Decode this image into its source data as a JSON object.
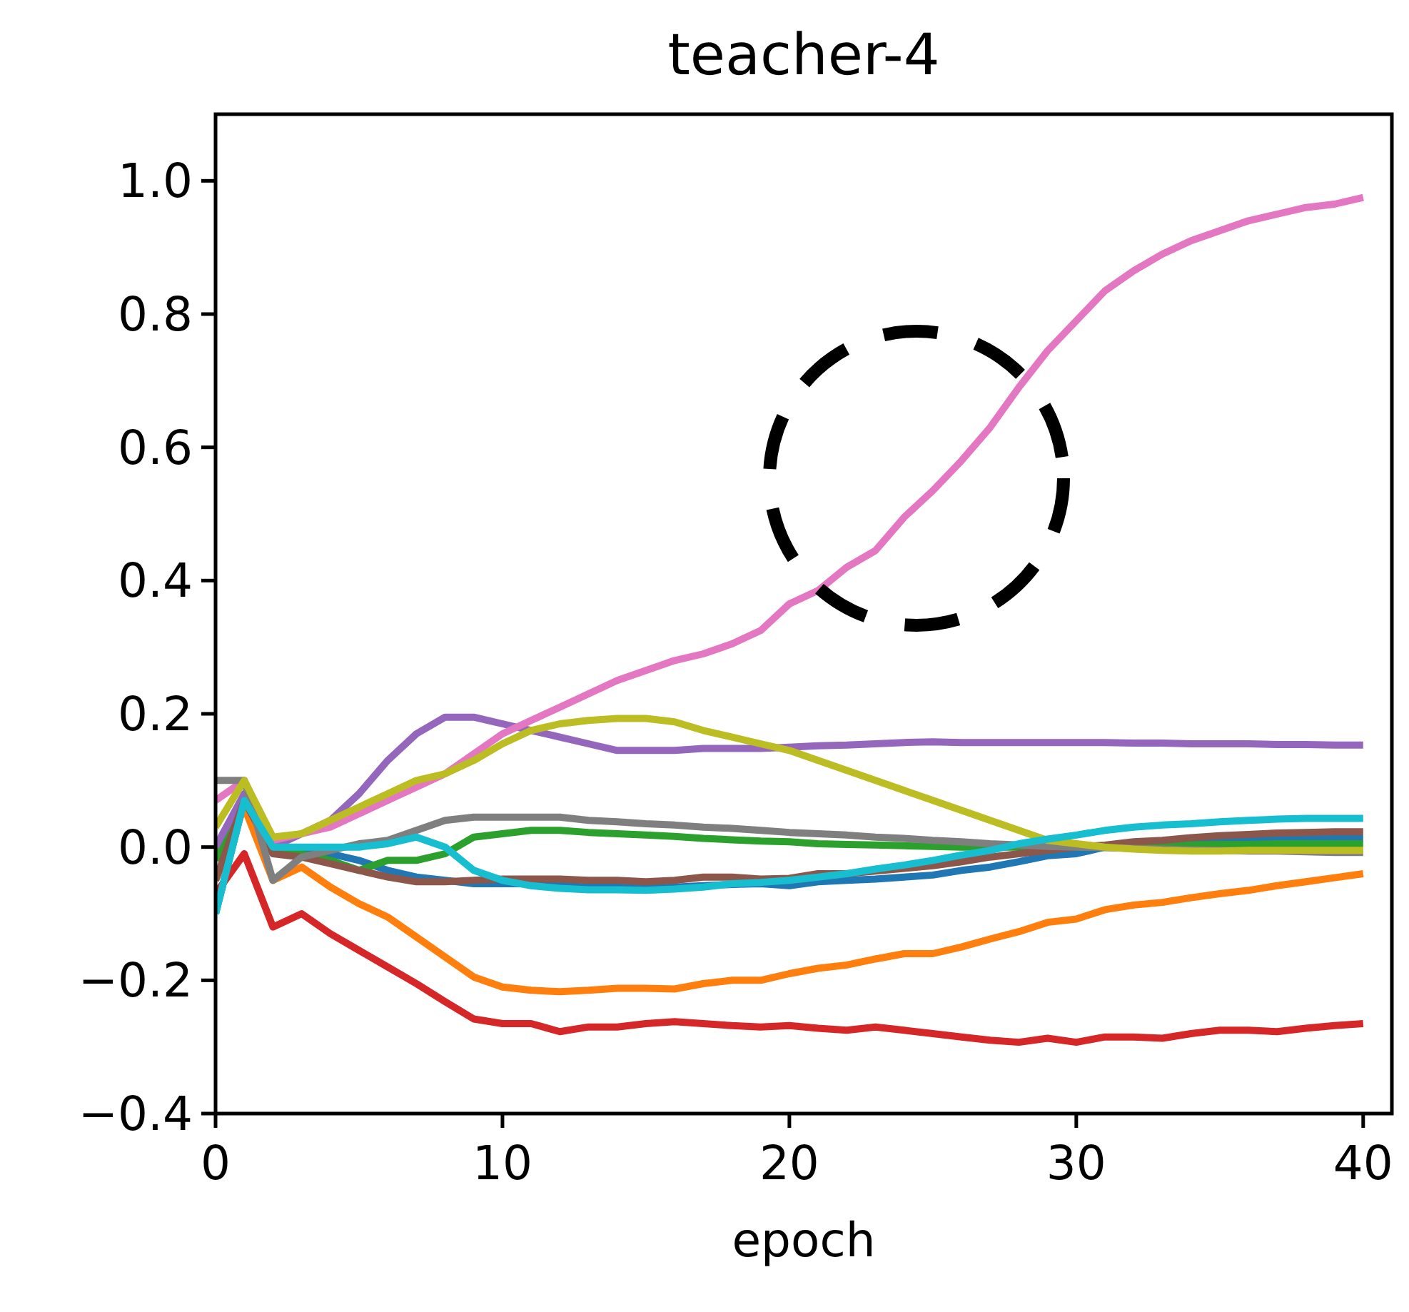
{
  "chart_data": {
    "type": "line",
    "title": "teacher-4",
    "xlabel": "epoch",
    "x": [
      0,
      1,
      2,
      3,
      4,
      5,
      6,
      7,
      8,
      9,
      10,
      11,
      12,
      13,
      14,
      15,
      16,
      17,
      18,
      19,
      20,
      21,
      22,
      23,
      24,
      25,
      26,
      27,
      28,
      29,
      30,
      31,
      32,
      33,
      34,
      35,
      36,
      37,
      38,
      39,
      40
    ],
    "xlim": [
      0,
      41
    ],
    "ylim": [
      -0.4,
      1.1
    ],
    "xticks": [
      0,
      10,
      20,
      30,
      40
    ],
    "yticks": [
      {
        "value": -0.4,
        "label": "−0.4"
      },
      {
        "value": -0.2,
        "label": "−0.2"
      },
      {
        "value": 0,
        "label": "0.0"
      },
      {
        "value": 0.2,
        "label": "0.2"
      },
      {
        "value": 0.4,
        "label": "0.4"
      },
      {
        "value": 0.6,
        "label": "0.6"
      },
      {
        "value": 0.8,
        "label": "0.8"
      },
      {
        "value": 1,
        "label": "1.0"
      }
    ],
    "grid": false,
    "line_style": "solid",
    "marker": "none",
    "series": [
      {
        "color": "#1f77b4",
        "values": [
          -0.1,
          0.07,
          -0.01,
          -0.01,
          -0.01,
          -0.02,
          -0.035,
          -0.045,
          -0.05,
          -0.055,
          -0.055,
          -0.055,
          -0.058,
          -0.06,
          -0.06,
          -0.062,
          -0.06,
          -0.058,
          -0.056,
          -0.055,
          -0.058,
          -0.052,
          -0.05,
          -0.048,
          -0.045,
          -0.042,
          -0.035,
          -0.03,
          -0.022,
          -0.013,
          -0.01,
          0,
          0.005,
          0.008,
          0.01,
          0.01,
          0.01,
          0.012,
          0.013,
          0.013,
          0.013
        ]
      },
      {
        "color": "#ff7f0e",
        "values": [
          -0.05,
          0.06,
          -0.05,
          -0.03,
          -0.06,
          -0.085,
          -0.105,
          -0.135,
          -0.165,
          -0.195,
          -0.21,
          -0.215,
          -0.217,
          -0.215,
          -0.212,
          -0.212,
          -0.213,
          -0.205,
          -0.2,
          -0.2,
          -0.19,
          -0.182,
          -0.177,
          -0.168,
          -0.16,
          -0.16,
          -0.15,
          -0.138,
          -0.127,
          -0.113,
          -0.108,
          -0.094,
          -0.087,
          -0.083,
          -0.076,
          -0.07,
          -0.065,
          -0.058,
          -0.052,
          -0.046,
          -0.04
        ]
      },
      {
        "color": "#2ca02c",
        "values": [
          -0.02,
          0.08,
          -0.01,
          -0.01,
          -0.02,
          -0.035,
          -0.02,
          -0.02,
          -0.01,
          0.015,
          0.02,
          0.025,
          0.025,
          0.022,
          0.02,
          0.018,
          0.016,
          0.013,
          0.011,
          0.009,
          0.008,
          0.005,
          0.004,
          0.003,
          0.002,
          0.001,
          0,
          0,
          0,
          0,
          0,
          0.001,
          0.002,
          0.003,
          0.003,
          0.004,
          0.004,
          0.005,
          0.005,
          0.005,
          0.005
        ]
      },
      {
        "color": "#d62728",
        "values": [
          -0.07,
          -0.01,
          -0.12,
          -0.1,
          -0.13,
          -0.155,
          -0.18,
          -0.205,
          -0.232,
          -0.258,
          -0.265,
          -0.265,
          -0.277,
          -0.27,
          -0.27,
          -0.265,
          -0.262,
          -0.265,
          -0.268,
          -0.27,
          -0.268,
          -0.272,
          -0.275,
          -0.27,
          -0.275,
          -0.28,
          -0.285,
          -0.29,
          -0.293,
          -0.287,
          -0.293,
          -0.285,
          -0.285,
          -0.287,
          -0.28,
          -0.275,
          -0.275,
          -0.277,
          -0.272,
          -0.268,
          -0.265
        ]
      },
      {
        "color": "#9467bd",
        "values": [
          0,
          0.08,
          0,
          0.02,
          0.04,
          0.08,
          0.13,
          0.17,
          0.195,
          0.195,
          0.185,
          0.175,
          0.165,
          0.155,
          0.145,
          0.145,
          0.145,
          0.148,
          0.148,
          0.148,
          0.15,
          0.152,
          0.153,
          0.155,
          0.157,
          0.158,
          0.157,
          0.157,
          0.157,
          0.157,
          0.157,
          0.157,
          0.156,
          0.156,
          0.155,
          0.155,
          0.155,
          0.154,
          0.154,
          0.153,
          0.153
        ]
      },
      {
        "color": "#8c564b",
        "values": [
          -0.05,
          0.07,
          -0.01,
          -0.015,
          -0.025,
          -0.035,
          -0.045,
          -0.052,
          -0.052,
          -0.05,
          -0.048,
          -0.048,
          -0.048,
          -0.05,
          -0.05,
          -0.052,
          -0.05,
          -0.045,
          -0.045,
          -0.048,
          -0.047,
          -0.04,
          -0.04,
          -0.036,
          -0.032,
          -0.028,
          -0.022,
          -0.015,
          -0.01,
          -0.005,
          0,
          0.003,
          0.008,
          0.01,
          0.014,
          0.017,
          0.019,
          0.021,
          0.022,
          0.023,
          0.023
        ]
      },
      {
        "color": "#e377c2",
        "values": [
          0.07,
          0.1,
          0.01,
          0.02,
          0.03,
          0.05,
          0.07,
          0.09,
          0.11,
          0.14,
          0.17,
          0.19,
          0.21,
          0.23,
          0.25,
          0.265,
          0.28,
          0.29,
          0.305,
          0.325,
          0.365,
          0.385,
          0.42,
          0.445,
          0.495,
          0.535,
          0.58,
          0.63,
          0.69,
          0.745,
          0.79,
          0.835,
          0.865,
          0.89,
          0.91,
          0.925,
          0.94,
          0.95,
          0.96,
          0.965,
          0.975
        ]
      },
      {
        "color": "#7f7f7f",
        "values": [
          0.1,
          0.1,
          -0.05,
          -0.015,
          -0.005,
          0.005,
          0.01,
          0.025,
          0.04,
          0.045,
          0.045,
          0.045,
          0.045,
          0.04,
          0.038,
          0.035,
          0.033,
          0.03,
          0.028,
          0.025,
          0.022,
          0.02,
          0.018,
          0.015,
          0.013,
          0.01,
          0.008,
          0.005,
          0.003,
          0.001,
          0,
          -0.001,
          -0.002,
          -0.003,
          -0.004,
          -0.005,
          -0.006,
          -0.006,
          -0.007,
          -0.008,
          -0.008
        ]
      },
      {
        "color": "#bcbd22",
        "values": [
          0.03,
          0.1,
          0.015,
          0.02,
          0.04,
          0.06,
          0.08,
          0.1,
          0.11,
          0.13,
          0.155,
          0.175,
          0.185,
          0.19,
          0.193,
          0.193,
          0.188,
          0.175,
          0.165,
          0.155,
          0.145,
          0.13,
          0.115,
          0.1,
          0.085,
          0.07,
          0.055,
          0.04,
          0.025,
          0.01,
          0.005,
          0,
          -0.003,
          -0.005,
          -0.006,
          -0.006,
          -0.005,
          -0.005,
          -0.005,
          -0.005,
          -0.005
        ]
      },
      {
        "color": "#17becf",
        "values": [
          -0.1,
          0.07,
          0,
          0,
          0,
          0,
          0.005,
          0.015,
          0,
          -0.035,
          -0.05,
          -0.058,
          -0.062,
          -0.064,
          -0.064,
          -0.065,
          -0.063,
          -0.06,
          -0.055,
          -0.053,
          -0.05,
          -0.045,
          -0.04,
          -0.033,
          -0.027,
          -0.02,
          -0.012,
          -0.005,
          0.005,
          0.012,
          0.018,
          0.025,
          0.03,
          0.033,
          0.035,
          0.038,
          0.04,
          0.042,
          0.043,
          0.043,
          0.043
        ]
      }
    ]
  }
}
